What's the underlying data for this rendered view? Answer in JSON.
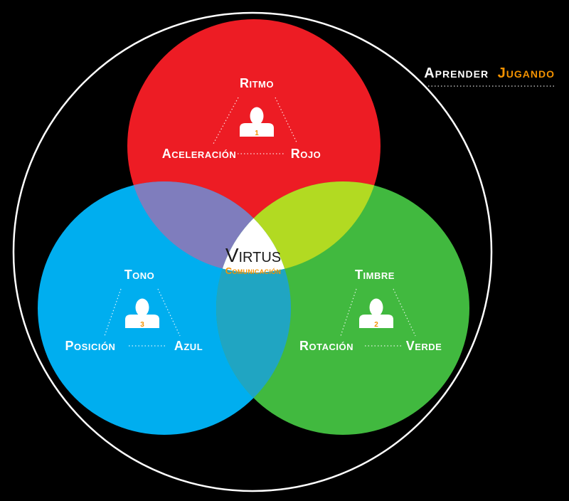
{
  "brand": {
    "word1": "Aprender",
    "word2": "Jugando",
    "accent_color": "#f39200"
  },
  "colors": {
    "background": "#000000",
    "outer_ring": "#ffffff",
    "red": "#ed1c24",
    "blue": "#00aeef",
    "green": "#41b93f",
    "red_blue": "#7f7dbd",
    "red_green": "#b2da22",
    "blue_green": "#20a5c2",
    "center": "#ffffff"
  },
  "center": {
    "title": "Virtus",
    "subtitle": "Comunicación"
  },
  "groups": [
    {
      "id": "red",
      "badge": "1",
      "labels": {
        "top": "Ritmo",
        "left": "Aceleración",
        "right": "Rojo"
      }
    },
    {
      "id": "green",
      "badge": "2",
      "labels": {
        "top": "Timbre",
        "left": "Rotación",
        "right": "Verde"
      }
    },
    {
      "id": "blue",
      "badge": "3",
      "labels": {
        "top": "Tono",
        "left": "Posición",
        "right": "Azul"
      }
    }
  ]
}
